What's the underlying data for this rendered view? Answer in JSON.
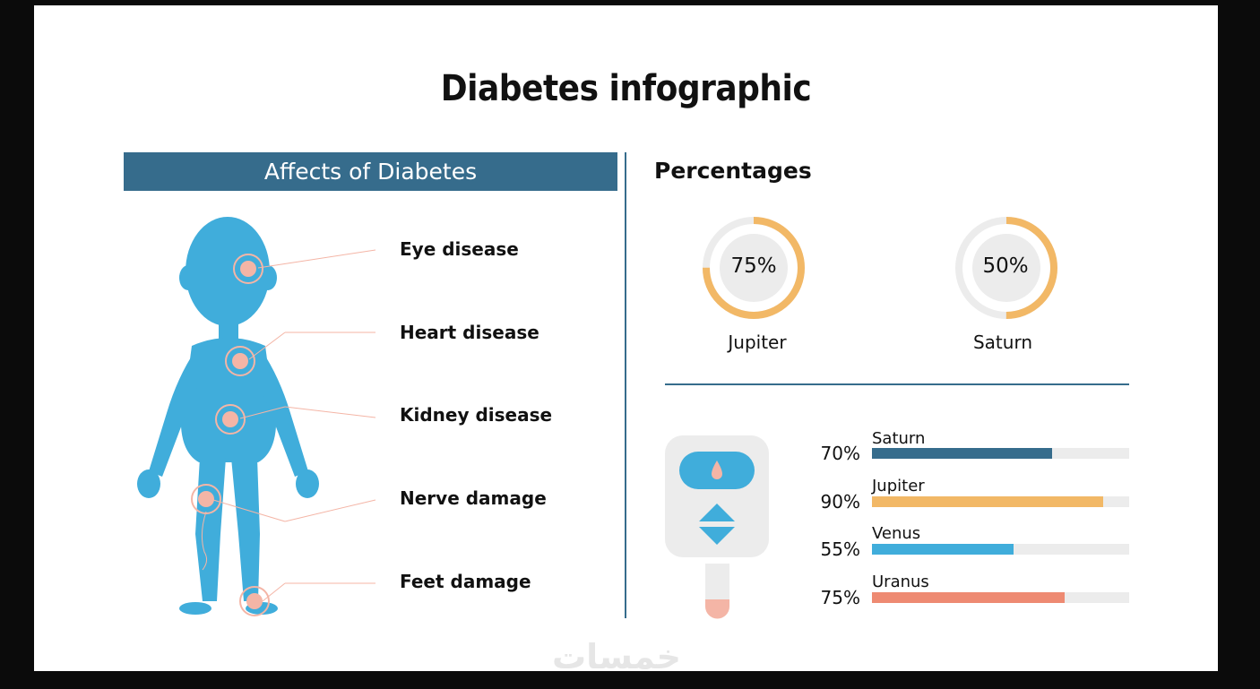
{
  "slide": {
    "title": "Diabetes infographic",
    "watermark": "خمسات"
  },
  "affects": {
    "header": "Affects of Diabetes",
    "items": [
      {
        "label": "Eye disease"
      },
      {
        "label": "Heart disease"
      },
      {
        "label": "Kidney disease"
      },
      {
        "label": "Nerve damage"
      },
      {
        "label": "Feet damage"
      }
    ]
  },
  "percentages": {
    "title": "Percentages",
    "donuts": [
      {
        "name": "Jupiter",
        "value_label": "75%",
        "fraction": 0.75
      },
      {
        "name": "Saturn",
        "value_label": "50%",
        "fraction": 0.5
      }
    ],
    "bars": [
      {
        "name": "Saturn",
        "value_label": "70%",
        "fraction": 0.7,
        "color": "#366c8c"
      },
      {
        "name": "Jupiter",
        "value_label": "90%",
        "fraction": 0.9,
        "color": "#f2b866"
      },
      {
        "name": "Venus",
        "value_label": "55%",
        "fraction": 0.55,
        "color": "#40addb"
      },
      {
        "name": "Uranus",
        "value_label": "75%",
        "fraction": 0.75,
        "color": "#ee8a72"
      }
    ]
  },
  "colors": {
    "header_bg": "#366c8c",
    "body_blue": "#40addb",
    "organ_pink": "#f4b5a6",
    "donut_orange": "#f2b866",
    "track_gray": "#ececec"
  },
  "icons": {
    "body": "human-body-figure",
    "meter": "glucose-meter-icon"
  }
}
